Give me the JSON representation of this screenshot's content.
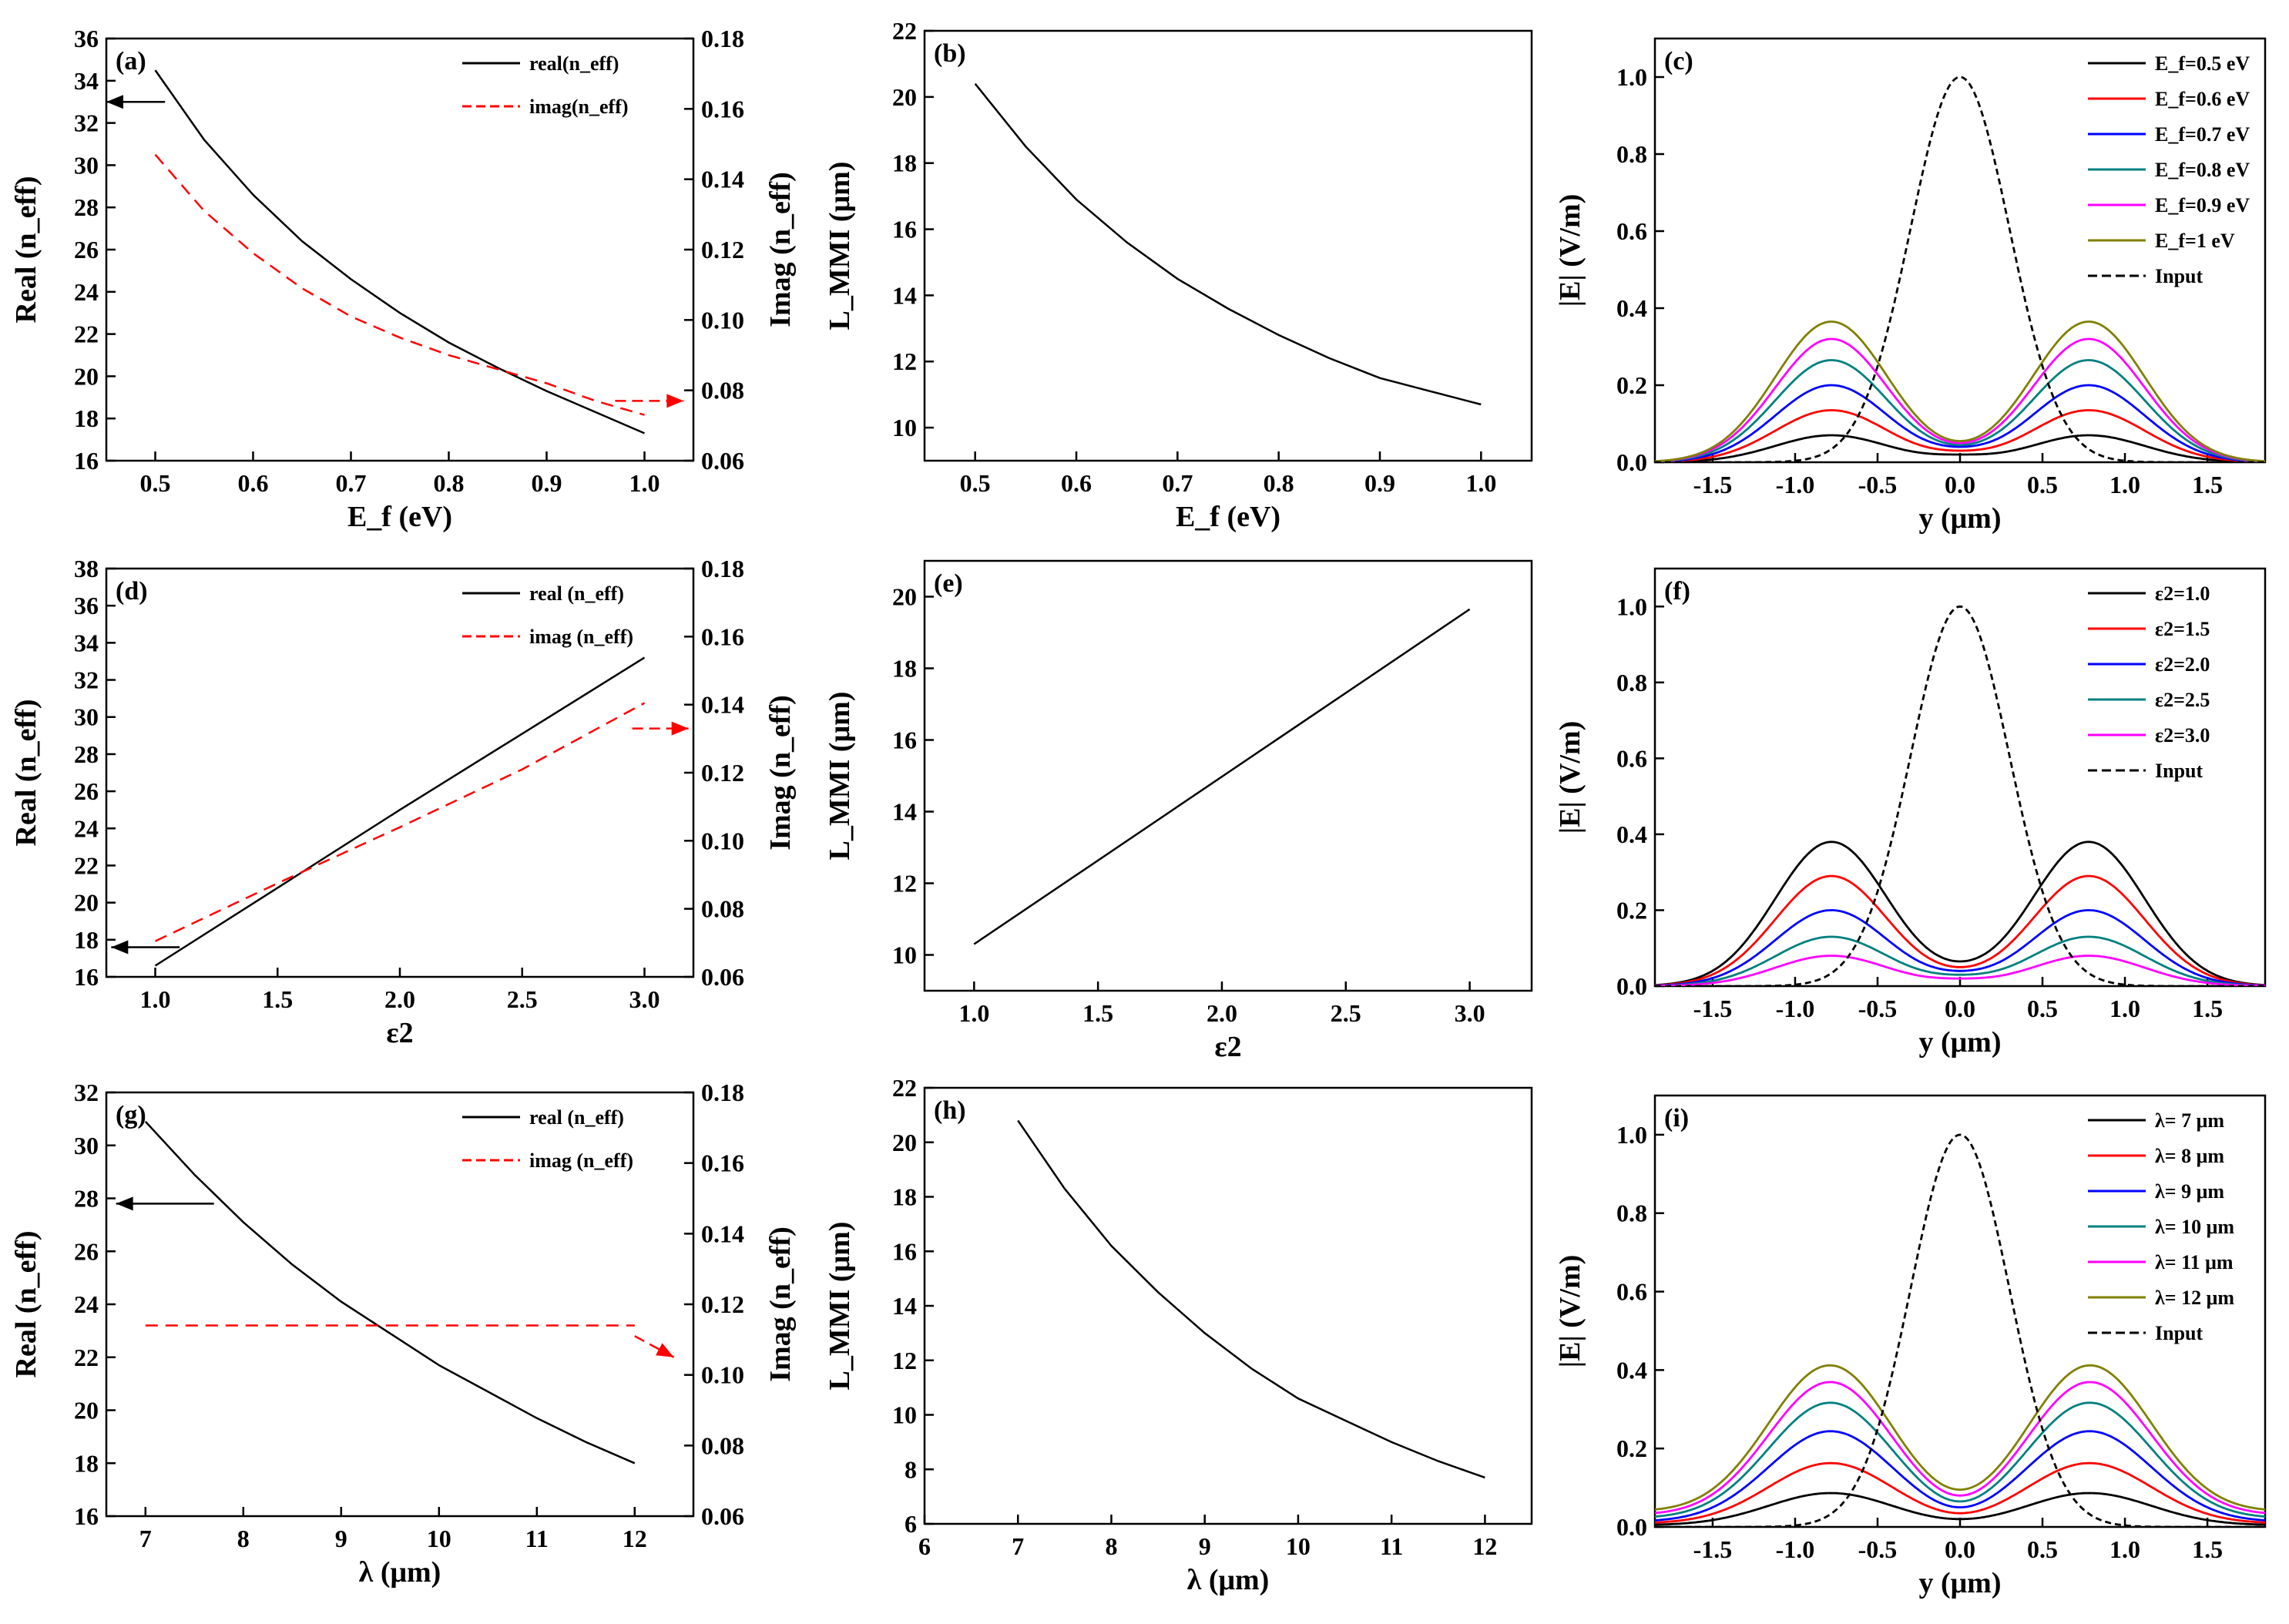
{
  "figure": {
    "description_free": true
  },
  "chart_data": [
    {
      "id": "a",
      "panel_label": "(a)",
      "type": "line",
      "xlabel": "E_f (eV)",
      "ylabel": "Real (n_eff)",
      "y2label": "Imag (n_eff)",
      "xlim": [
        0.45,
        1.05
      ],
      "ylim": [
        16,
        36
      ],
      "y2lim": [
        0.06,
        0.18
      ],
      "xticks": [
        0.5,
        0.6,
        0.7,
        0.8,
        0.9,
        1.0
      ],
      "xtick_labels": [
        "0.5",
        "0.6",
        "0.7",
        "0.8",
        "0.9",
        "1.0"
      ],
      "yticks": [
        16,
        18,
        20,
        22,
        24,
        26,
        28,
        30,
        32,
        34,
        36
      ],
      "ytick_labels": [
        "16",
        "18",
        "20",
        "22",
        "24",
        "26",
        "28",
        "30",
        "32",
        "34",
        "36"
      ],
      "y2ticks": [
        0.06,
        0.08,
        0.1,
        0.12,
        0.14,
        0.16,
        0.18
      ],
      "y2tick_labels": [
        "0.06",
        "0.08",
        "0.10",
        "0.12",
        "0.14",
        "0.16",
        "0.18"
      ],
      "legend_position": "top-right",
      "series": [
        {
          "name": "real(n_eff)",
          "axis": "left",
          "color": "#000000",
          "dash": "solid",
          "width": 2.5,
          "x": [
            0.5,
            0.55,
            0.6,
            0.65,
            0.7,
            0.75,
            0.8,
            0.85,
            0.9,
            0.95,
            1.0
          ],
          "y": [
            34.5,
            31.2,
            28.6,
            26.4,
            24.6,
            23.0,
            21.6,
            20.4,
            19.3,
            18.3,
            17.3
          ]
        },
        {
          "name": "imag(n_eff)",
          "axis": "right",
          "color": "#ff0000",
          "dash": "dashed",
          "width": 2.5,
          "x": [
            0.5,
            0.55,
            0.6,
            0.65,
            0.7,
            0.75,
            0.8,
            0.85,
            0.9,
            0.95,
            1.0
          ],
          "y": [
            0.147,
            0.131,
            0.119,
            0.109,
            0.101,
            0.095,
            0.09,
            0.086,
            0.082,
            0.077,
            0.073
          ]
        }
      ],
      "arrows": [
        {
          "axis": "left",
          "color": "#000000",
          "dash": "solid",
          "x1": 0.51,
          "y1": 33,
          "x2": 0.45,
          "y2": 33
        },
        {
          "axis": "right",
          "color": "#ff0000",
          "dash": "dashed",
          "x1": 0.97,
          "y1": 0.077,
          "x2": 1.04,
          "y2": 0.077
        }
      ]
    },
    {
      "id": "b",
      "panel_label": "(b)",
      "type": "line",
      "xlabel": "E_f (eV)",
      "ylabel": "L_MMI (μm)",
      "xlim": [
        0.45,
        1.05
      ],
      "ylim": [
        9,
        22
      ],
      "xticks": [
        0.5,
        0.6,
        0.7,
        0.8,
        0.9,
        1.0
      ],
      "xtick_labels": [
        "0.5",
        "0.6",
        "0.7",
        "0.8",
        "0.9",
        "1.0"
      ],
      "yticks": [
        10,
        12,
        14,
        16,
        18,
        20,
        22
      ],
      "ytick_labels": [
        "10",
        "12",
        "14",
        "16",
        "18",
        "20",
        "22"
      ],
      "series": [
        {
          "name": "L_MMI",
          "axis": "left",
          "color": "#000000",
          "dash": "solid",
          "width": 2.5,
          "x": [
            0.5,
            0.55,
            0.6,
            0.65,
            0.7,
            0.75,
            0.8,
            0.85,
            0.9,
            0.95,
            1.0
          ],
          "y": [
            20.4,
            18.5,
            16.9,
            15.6,
            14.5,
            13.6,
            12.8,
            12.1,
            11.5,
            11.1,
            10.7
          ]
        }
      ]
    },
    {
      "id": "c",
      "panel_label": "(c)",
      "type": "line",
      "xlabel": "y (μm)",
      "ylabel": "|E| (V/m)",
      "xlim": [
        -1.85,
        1.85
      ],
      "ylim": [
        0,
        1.1
      ],
      "xticks": [
        -1.5,
        -1.0,
        -0.5,
        0.0,
        0.5,
        1.0,
        1.5
      ],
      "xtick_labels": [
        "-1.5",
        "-1.0",
        "-0.5",
        "0.0",
        "0.5",
        "1.0",
        "1.5"
      ],
      "yticks": [
        0,
        0.2,
        0.4,
        0.6,
        0.8,
        1.0
      ],
      "ytick_labels": [
        "0.0",
        "0.2",
        "0.4",
        "0.6",
        "0.8",
        "1.0"
      ],
      "legend_position": "top-right",
      "profile": {
        "peak_center": 0.78,
        "peak_sigma": 0.34,
        "input_sigma": 0.3
      },
      "series": [
        {
          "name": "E_f=0.5 eV",
          "color": "#000000",
          "dash": "solid",
          "peak": 0.07,
          "center": 0.02
        },
        {
          "name": "E_f=0.6 eV",
          "color": "#ff0000",
          "dash": "solid",
          "peak": 0.135,
          "center": 0.03
        },
        {
          "name": "E_f=0.7 eV",
          "color": "#0000ff",
          "dash": "solid",
          "peak": 0.2,
          "center": 0.04
        },
        {
          "name": "E_f=0.8 eV",
          "color": "#008080",
          "dash": "solid",
          "peak": 0.265,
          "center": 0.045
        },
        {
          "name": "E_f=0.9 eV",
          "color": "#ff00ff",
          "dash": "solid",
          "peak": 0.32,
          "center": 0.05
        },
        {
          "name": "E_f=1 eV",
          "color": "#808000",
          "dash": "solid",
          "peak": 0.365,
          "center": 0.055
        },
        {
          "name": "Input",
          "color": "#000000",
          "dash": "dashed",
          "input": true,
          "peak": 1.0
        }
      ]
    },
    {
      "id": "d",
      "panel_label": "(d)",
      "type": "line",
      "xlabel": "ε2",
      "ylabel": "Real (n_eff)",
      "y2label": "Imag (n_eff)",
      "xlim": [
        0.8,
        3.2
      ],
      "ylim": [
        16,
        38
      ],
      "y2lim": [
        0.06,
        0.18
      ],
      "xticks": [
        1.0,
        1.5,
        2.0,
        2.5,
        3.0
      ],
      "xtick_labels": [
        "1.0",
        "1.5",
        "2.0",
        "2.5",
        "3.0"
      ],
      "yticks": [
        16,
        18,
        20,
        22,
        24,
        26,
        28,
        30,
        32,
        34,
        36,
        38
      ],
      "ytick_labels": [
        "16",
        "18",
        "20",
        "22",
        "24",
        "26",
        "28",
        "30",
        "32",
        "34",
        "36",
        "38"
      ],
      "y2ticks": [
        0.06,
        0.08,
        0.1,
        0.12,
        0.14,
        0.16,
        0.18
      ],
      "y2tick_labels": [
        "0.06",
        "0.08",
        "0.10",
        "0.12",
        "0.14",
        "0.16",
        "0.18"
      ],
      "legend_position": "top-right",
      "series": [
        {
          "name": "real (n_eff)",
          "axis": "left",
          "color": "#000000",
          "dash": "solid",
          "width": 2.5,
          "x": [
            1.0,
            1.5,
            2.0,
            2.5,
            3.0
          ],
          "y": [
            16.6,
            20.8,
            25.0,
            29.1,
            33.2
          ]
        },
        {
          "name": "imag (n_eff)",
          "axis": "right",
          "color": "#ff0000",
          "dash": "dashed",
          "width": 2.5,
          "x": [
            1.0,
            1.5,
            2.0,
            2.5,
            3.0
          ],
          "y": [
            0.0705,
            0.0875,
            0.104,
            0.121,
            0.1405
          ]
        }
      ],
      "arrows": [
        {
          "axis": "left",
          "color": "#000000",
          "dash": "solid",
          "x1": 1.1,
          "y1": 17.6,
          "x2": 0.82,
          "y2": 17.6
        },
        {
          "axis": "right",
          "color": "#ff0000",
          "dash": "dashed",
          "x1": 2.95,
          "y1": 0.133,
          "x2": 3.18,
          "y2": 0.133
        }
      ]
    },
    {
      "id": "e",
      "panel_label": "(e)",
      "type": "line",
      "xlabel": "ε2",
      "ylabel": "L_MMI (μm)",
      "xlim": [
        0.8,
        3.25
      ],
      "ylim": [
        9,
        21
      ],
      "xticks": [
        1.0,
        1.5,
        2.0,
        2.5,
        3.0
      ],
      "xtick_labels": [
        "1.0",
        "1.5",
        "2.0",
        "2.5",
        "3.0"
      ],
      "yticks": [
        10,
        12,
        14,
        16,
        18,
        20
      ],
      "ytick_labels": [
        "10",
        "12",
        "14",
        "16",
        "18",
        "20"
      ],
      "series": [
        {
          "name": "L_MMI",
          "axis": "left",
          "color": "#000000",
          "dash": "solid",
          "width": 2.5,
          "x": [
            1.0,
            3.0
          ],
          "y": [
            10.3,
            19.65
          ]
        }
      ]
    },
    {
      "id": "f",
      "panel_label": "(f)",
      "type": "line",
      "xlabel": "y (μm)",
      "ylabel": "|E| (V/m)",
      "xlim": [
        -1.85,
        1.85
      ],
      "ylim": [
        0,
        1.1
      ],
      "xticks": [
        -1.5,
        -1.0,
        -0.5,
        0.0,
        0.5,
        1.0,
        1.5
      ],
      "xtick_labels": [
        "-1.5",
        "-1.0",
        "-0.5",
        "0.0",
        "0.5",
        "1.0",
        "1.5"
      ],
      "yticks": [
        0,
        0.2,
        0.4,
        0.6,
        0.8,
        1.0
      ],
      "ytick_labels": [
        "0.0",
        "0.2",
        "0.4",
        "0.6",
        "0.8",
        "1.0"
      ],
      "legend_position": "top-right",
      "profile": {
        "peak_center": 0.78,
        "peak_sigma": 0.34,
        "input_sigma": 0.3
      },
      "series": [
        {
          "name": "ε2=1.0",
          "color": "#000000",
          "dash": "solid",
          "peak": 0.38,
          "center": 0.065
        },
        {
          "name": "ε2=1.5",
          "color": "#ff0000",
          "dash": "solid",
          "peak": 0.29,
          "center": 0.05
        },
        {
          "name": "ε2=2.0",
          "color": "#0000ff",
          "dash": "solid",
          "peak": 0.2,
          "center": 0.04
        },
        {
          "name": "ε2=2.5",
          "color": "#008080",
          "dash": "solid",
          "peak": 0.13,
          "center": 0.03
        },
        {
          "name": "ε2=3.0",
          "color": "#ff00ff",
          "dash": "solid",
          "peak": 0.08,
          "center": 0.02
        },
        {
          "name": "Input",
          "color": "#000000",
          "dash": "dashed",
          "input": true,
          "peak": 1.0
        }
      ]
    },
    {
      "id": "g",
      "panel_label": "(g)",
      "type": "line",
      "xlabel": "λ (μm)",
      "ylabel": "Real (n_eff)",
      "y2label": "Imag (n_eff)",
      "xlim": [
        6.6,
        12.6
      ],
      "ylim": [
        16,
        32
      ],
      "y2lim": [
        0.06,
        0.18
      ],
      "xticks": [
        7,
        8,
        9,
        10,
        11,
        12
      ],
      "xtick_labels": [
        "7",
        "8",
        "9",
        "10",
        "11",
        "12"
      ],
      "yticks": [
        16,
        18,
        20,
        22,
        24,
        26,
        28,
        30,
        32
      ],
      "ytick_labels": [
        "16",
        "18",
        "20",
        "22",
        "24",
        "26",
        "28",
        "30",
        "32"
      ],
      "y2ticks": [
        0.06,
        0.08,
        0.1,
        0.12,
        0.14,
        0.16,
        0.18
      ],
      "y2tick_labels": [
        "0.06",
        "0.08",
        "0.10",
        "0.12",
        "0.14",
        "0.16",
        "0.18"
      ],
      "legend_position": "top-right",
      "series": [
        {
          "name": "real (n_eff)",
          "axis": "left",
          "color": "#000000",
          "dash": "solid",
          "width": 2.5,
          "x": [
            7,
            7.5,
            8,
            8.5,
            9,
            9.5,
            10,
            10.5,
            11,
            11.5,
            12
          ],
          "y": [
            30.9,
            28.9,
            27.1,
            25.5,
            24.1,
            22.9,
            21.7,
            20.7,
            19.7,
            18.8,
            18.0
          ]
        },
        {
          "name": "imag (n_eff)",
          "axis": "right",
          "color": "#ff0000",
          "dash": "dashed",
          "width": 2.5,
          "x": [
            7,
            12
          ],
          "y": [
            0.114,
            0.114
          ]
        }
      ],
      "arrows": [
        {
          "axis": "left",
          "color": "#000000",
          "dash": "solid",
          "x1": 7.7,
          "y1": 27.8,
          "x2": 6.7,
          "y2": 27.8
        },
        {
          "axis": "right",
          "color": "#ff0000",
          "dash": "dashed",
          "x1": 12.0,
          "y1": 0.111,
          "x2": 12.4,
          "y2": 0.105
        }
      ]
    },
    {
      "id": "h",
      "panel_label": "(h)",
      "type": "line",
      "xlabel": "λ (μm)",
      "ylabel": "L_MMI (μm)",
      "xlim": [
        6,
        12.5
      ],
      "ylim": [
        6,
        22
      ],
      "xticks": [
        6,
        7,
        8,
        9,
        10,
        11,
        12
      ],
      "xtick_labels": [
        "6",
        "7",
        "8",
        "9",
        "10",
        "11",
        "12"
      ],
      "yticks": [
        6,
        8,
        10,
        12,
        14,
        16,
        18,
        20,
        22
      ],
      "ytick_labels": [
        "6",
        "8",
        "10",
        "12",
        "14",
        "16",
        "18",
        "20",
        "22"
      ],
      "series": [
        {
          "name": "L_MMI",
          "axis": "left",
          "color": "#000000",
          "dash": "solid",
          "width": 2.5,
          "x": [
            7,
            7.5,
            8,
            8.5,
            9,
            9.5,
            10,
            10.5,
            11,
            11.5,
            12
          ],
          "y": [
            20.8,
            18.3,
            16.2,
            14.5,
            13.0,
            11.7,
            10.6,
            9.8,
            9.0,
            8.3,
            7.7
          ]
        }
      ]
    },
    {
      "id": "i",
      "panel_label": "(i)",
      "type": "line",
      "xlabel": "y (μm)",
      "ylabel": "|E| (V/m)",
      "xlim": [
        -1.85,
        1.85
      ],
      "ylim": [
        0,
        1.1
      ],
      "xticks": [
        -1.5,
        -1.0,
        -0.5,
        0.0,
        0.5,
        1.0,
        1.5
      ],
      "xtick_labels": [
        "-1.5",
        "-1.0",
        "-0.5",
        "0.0",
        "0.5",
        "1.0",
        "1.5"
      ],
      "yticks": [
        0,
        0.2,
        0.4,
        0.6,
        0.8,
        1.0
      ],
      "ytick_labels": [
        "0.0",
        "0.2",
        "0.4",
        "0.6",
        "0.8",
        "1.0"
      ],
      "legend_position": "top-right",
      "profile": {
        "peak_center": 0.78,
        "peak_sigma": 0.38,
        "input_sigma": 0.3
      },
      "series": [
        {
          "name": "λ= 7 μm",
          "color": "#000000",
          "dash": "solid",
          "peak": 0.085,
          "center": 0.02,
          "floor": 0.005
        },
        {
          "name": "λ= 8 μm",
          "color": "#ff0000",
          "dash": "solid",
          "peak": 0.16,
          "center": 0.035,
          "floor": 0.01
        },
        {
          "name": "λ= 9 μm",
          "color": "#0000ff",
          "dash": "solid",
          "peak": 0.24,
          "center": 0.05,
          "floor": 0.015
        },
        {
          "name": "λ= 10 μm",
          "color": "#008080",
          "dash": "solid",
          "peak": 0.31,
          "center": 0.065,
          "floor": 0.025
        },
        {
          "name": "λ= 11 μm",
          "color": "#ff00ff",
          "dash": "solid",
          "peak": 0.36,
          "center": 0.08,
          "floor": 0.035
        },
        {
          "name": "λ= 12 μm",
          "color": "#808000",
          "dash": "solid",
          "peak": 0.4,
          "center": 0.095,
          "floor": 0.045
        },
        {
          "name": "Input",
          "color": "#000000",
          "dash": "dashed",
          "input": true,
          "peak": 1.0
        }
      ]
    }
  ]
}
